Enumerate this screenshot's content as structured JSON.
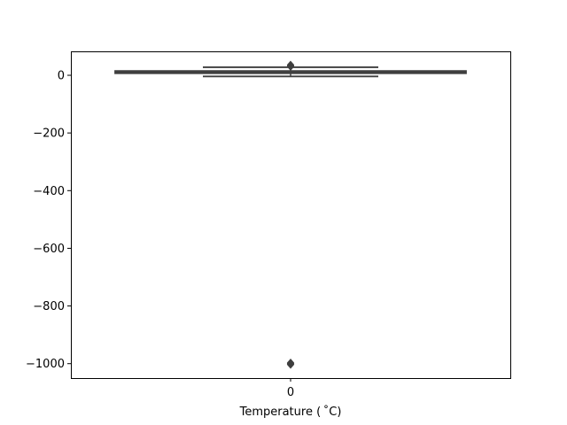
{
  "chart_data": {
    "type": "box",
    "xlabel": "Temperature ( ˚C)",
    "categories": [
      "0"
    ],
    "ylim": [
      -1050,
      83
    ],
    "yticks": [
      0,
      -200,
      -400,
      -600,
      -800,
      -1000
    ],
    "ytick_labels": [
      "0",
      "−200",
      "−400",
      "−600",
      "−800",
      "−1000"
    ],
    "box": {
      "category": "0",
      "whisker_low": -4,
      "q1": 7,
      "median": 11,
      "q3": 15,
      "whisker_high": 28,
      "outliers_high": [
        30,
        32,
        34,
        36
      ],
      "outliers_low": [
        -997,
        -999,
        -1001,
        -1003
      ]
    },
    "colors": {
      "box_line": "#3f3f3f",
      "axes": "#000000"
    },
    "grid": false
  }
}
